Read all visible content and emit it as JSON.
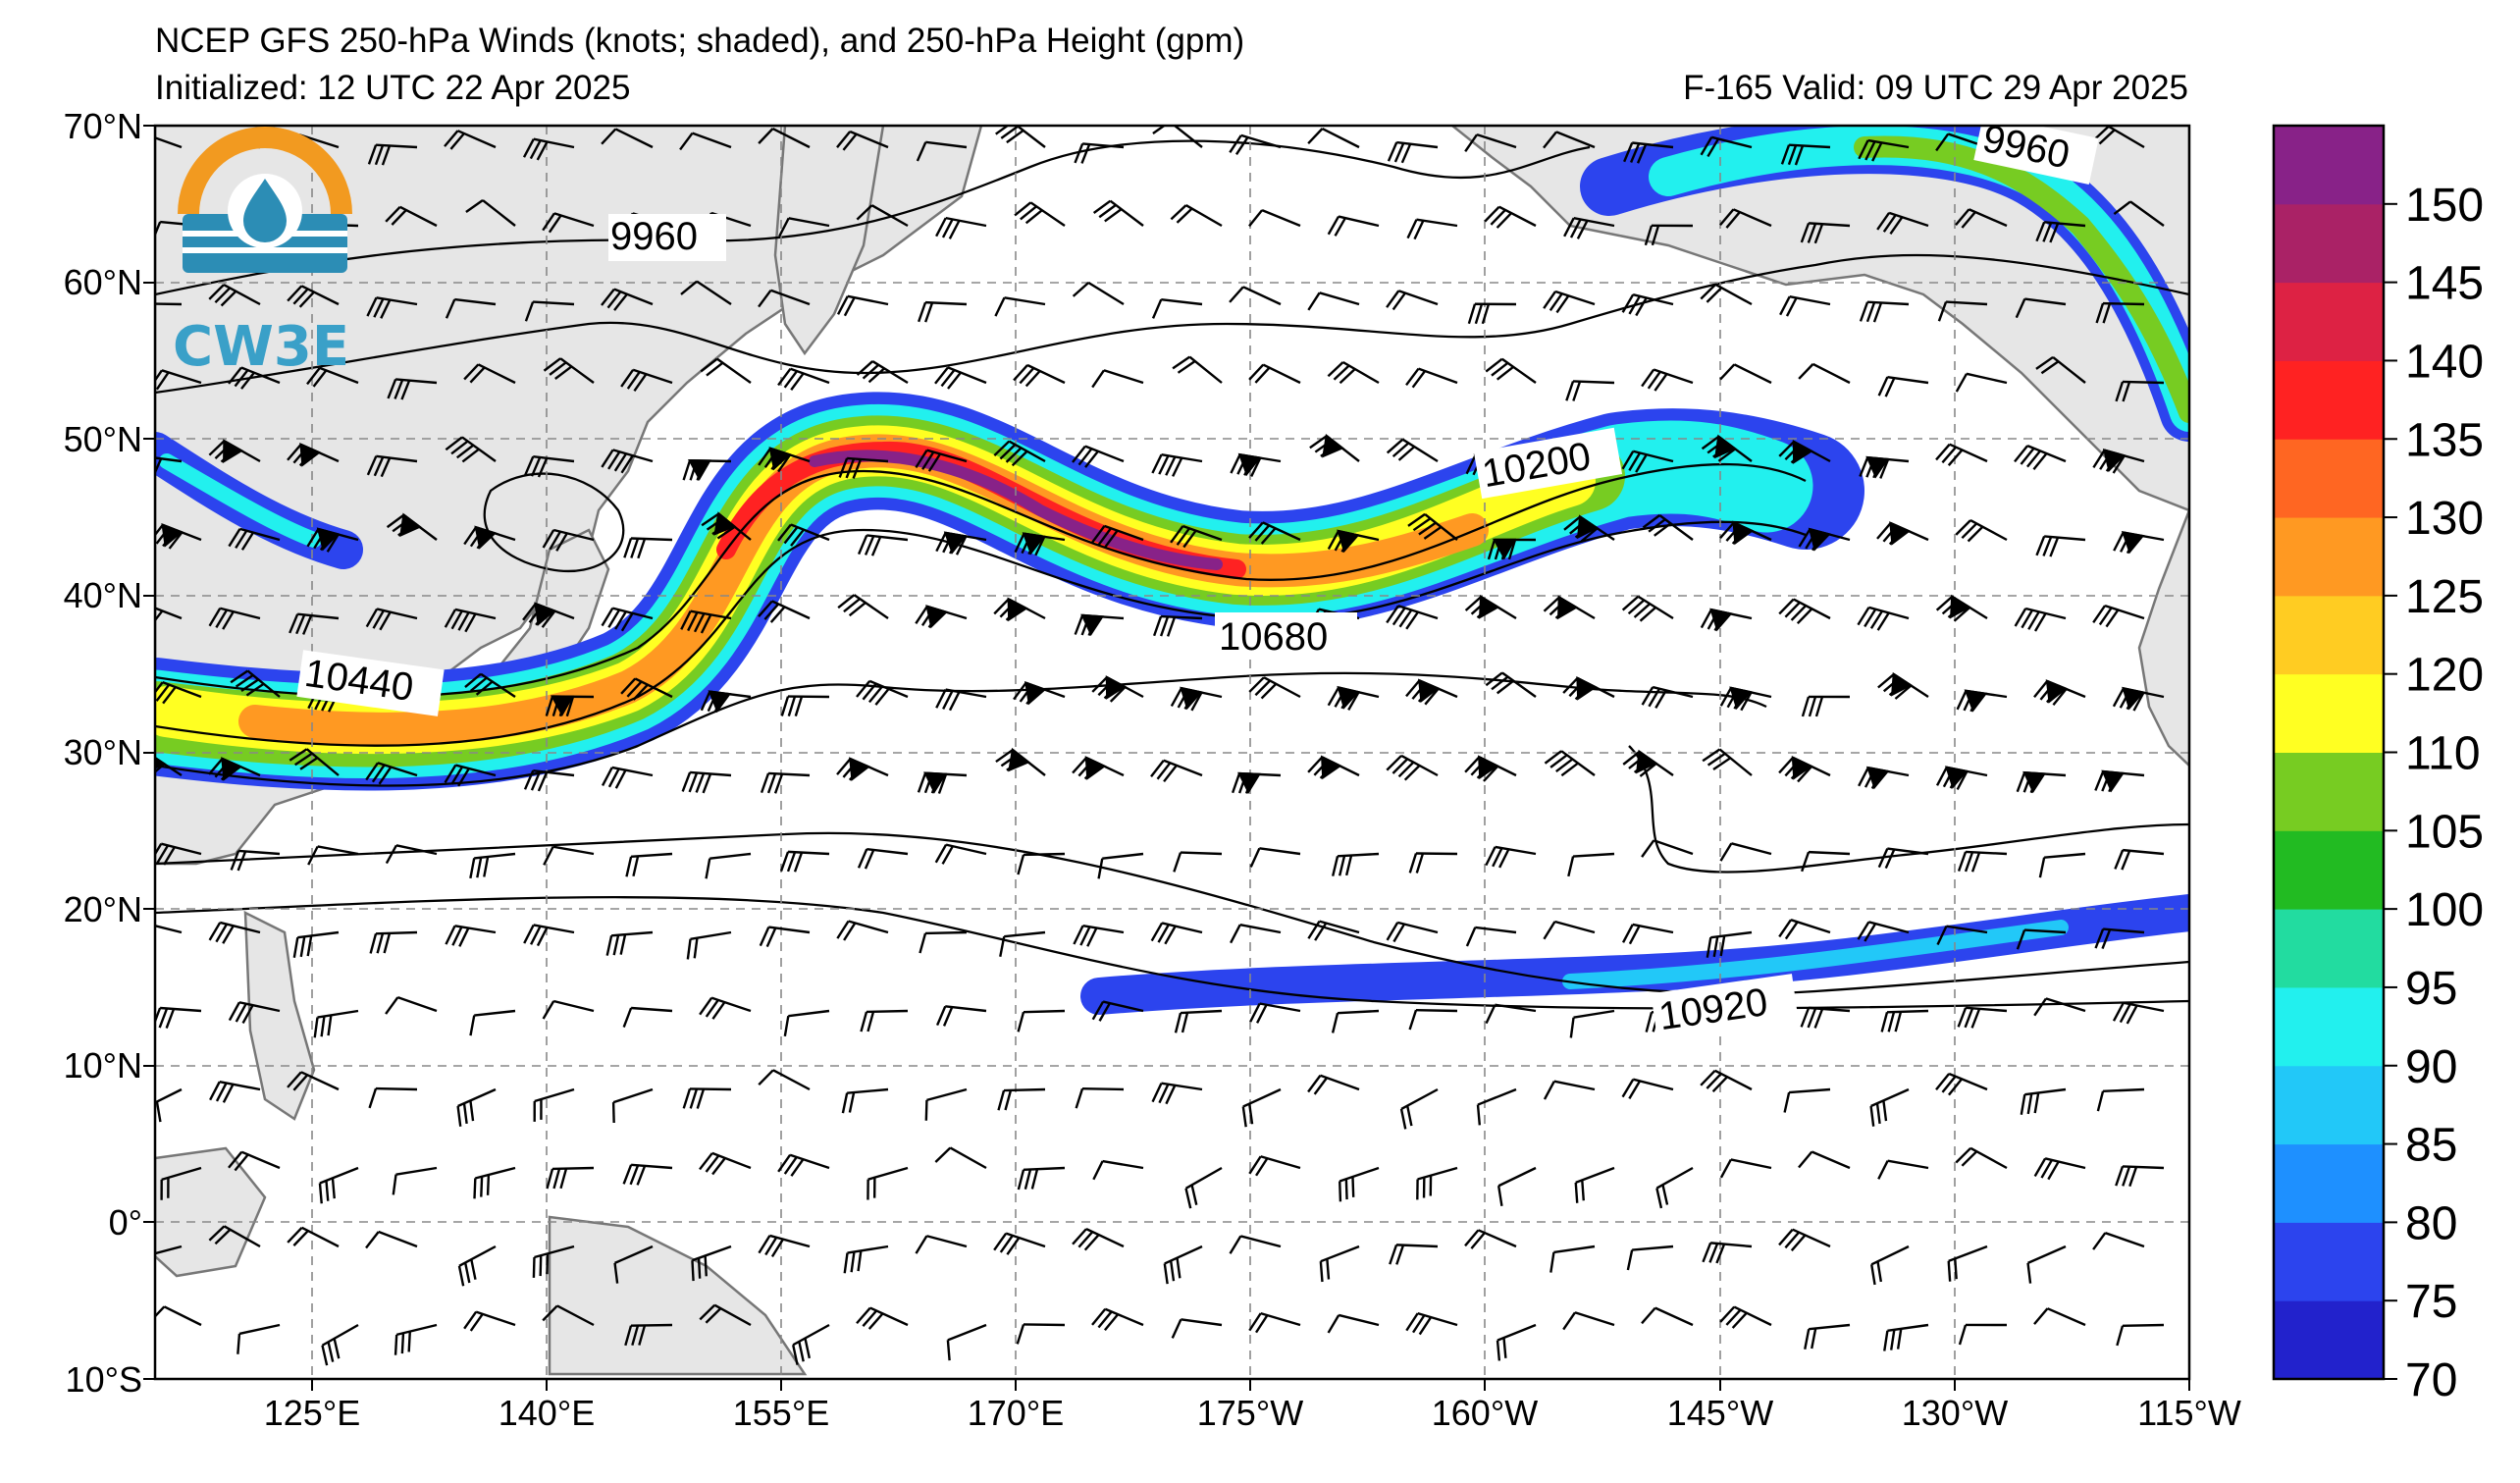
{
  "header": {
    "title": "NCEP GFS 250-hPa Winds (knots; shaded), and 250-hPa Height (gpm)",
    "initialized": "Initialized: 12 UTC 22 Apr 2025",
    "valid": "F-165  Valid: 09 UTC 29 Apr 2025"
  },
  "logo": {
    "text": "CW3E",
    "icon": "water-drop-icon"
  },
  "axes": {
    "lat_labels": [
      "70°N",
      "60°N",
      "50°N",
      "40°N",
      "30°N",
      "20°N",
      "10°N",
      "0°",
      "10°S"
    ],
    "lon_labels": [
      "125°E",
      "140°E",
      "155°E",
      "170°E",
      "175°W",
      "160°W",
      "145°W",
      "130°W",
      "115°W"
    ]
  },
  "colorbar": {
    "ticks": [
      "70",
      "75",
      "80",
      "85",
      "90",
      "95",
      "100",
      "105",
      "110",
      "120",
      "125",
      "130",
      "135",
      "140",
      "145",
      "150"
    ],
    "colors": [
      "#2222cc",
      "#2c44ee",
      "#1e90ff",
      "#22c8f8",
      "#22f0ee",
      "#22dca0",
      "#22bb22",
      "#77cc22",
      "#ffff22",
      "#ffcc22",
      "#ff9922",
      "#ff6622",
      "#ff2222",
      "#dd2244",
      "#aa2266",
      "#882288"
    ]
  },
  "contour_labels": [
    "9960",
    "9960",
    "10200",
    "10440",
    "10680",
    "10920"
  ]
}
